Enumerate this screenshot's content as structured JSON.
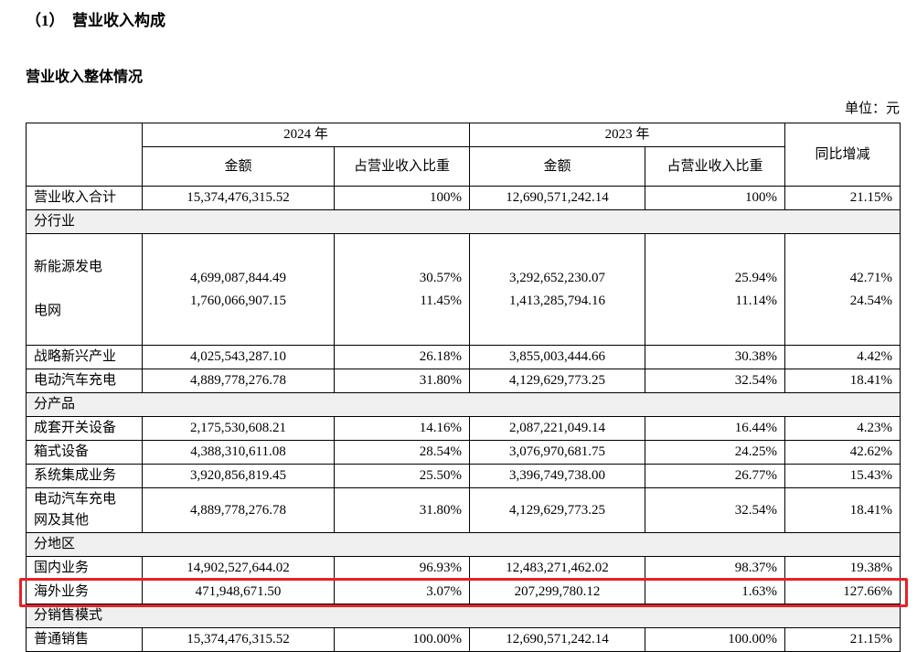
{
  "document": {
    "title": "（1）　营业收入构成",
    "subtitle": "营业收入整体情况",
    "unit_label": "单位：元"
  },
  "table": {
    "headers": {
      "y2024": "2024 年",
      "y2023": "2023 年",
      "yoy": "同比增减",
      "amount": "金额",
      "ratio": "占营业收入比重"
    },
    "rows": {
      "total": {
        "label": "营业收入合计",
        "amount_2024": "15,374,476,315.52",
        "ratio_2024": "100%",
        "amount_2023": "12,690,571,242.14",
        "ratio_2023": "100%",
        "yoy": "21.15%"
      },
      "sec_industry": {
        "label": "分行业"
      },
      "new_energy": {
        "label": "新能源发电",
        "amount_2024": "4,699,087,844.49",
        "ratio_2024": "30.57%",
        "amount_2023": "3,292,652,230.07",
        "ratio_2023": "25.94%",
        "yoy": "42.71%"
      },
      "power_grid": {
        "label": "电网",
        "amount_2024": "1,760,066,907.15",
        "ratio_2024": "11.45%",
        "amount_2023": "1,413,285,794.16",
        "ratio_2023": "11.14%",
        "yoy": "24.54%"
      },
      "strategic": {
        "label": "战略新兴产业",
        "amount_2024": "4,025,543,287.10",
        "ratio_2024": "26.18%",
        "amount_2023": "3,855,003,444.66",
        "ratio_2023": "30.38%",
        "yoy": "4.42%"
      },
      "ev_charging": {
        "label": "电动汽车充电",
        "amount_2024": "4,889,778,276.78",
        "ratio_2024": "31.80%",
        "amount_2023": "4,129,629,773.25",
        "ratio_2023": "32.54%",
        "yoy": "18.41%"
      },
      "sec_product": {
        "label": "分产品"
      },
      "switchgear": {
        "label": "成套开关设备",
        "amount_2024": "2,175,530,608.21",
        "ratio_2024": "14.16%",
        "amount_2023": "2,087,221,049.14",
        "ratio_2023": "16.44%",
        "yoy": "4.23%"
      },
      "box_equipment": {
        "label": "箱式设备",
        "amount_2024": "4,388,310,611.08",
        "ratio_2024": "28.54%",
        "amount_2023": "3,076,970,681.75",
        "ratio_2023": "24.25%",
        "yoy": "42.62%"
      },
      "integration": {
        "label": "系统集成业务",
        "amount_2024": "3,920,856,819.45",
        "ratio_2024": "25.50%",
        "amount_2023": "3,396,749,738.00",
        "ratio_2023": "26.77%",
        "yoy": "15.43%"
      },
      "ev_network": {
        "label": "电动汽车充电\n网及其他",
        "amount_2024": "4,889,778,276.78",
        "ratio_2024": "31.80%",
        "amount_2023": "4,129,629,773.25",
        "ratio_2023": "32.54%",
        "yoy": "18.41%"
      },
      "sec_region": {
        "label": "分地区"
      },
      "domestic": {
        "label": "国内业务",
        "amount_2024": "14,902,527,644.02",
        "ratio_2024": "96.93%",
        "amount_2023": "12,483,271,462.02",
        "ratio_2023": "98.37%",
        "yoy": "19.38%"
      },
      "overseas": {
        "label": "海外业务",
        "amount_2024": "471,948,671.50",
        "ratio_2024": "3.07%",
        "amount_2023": "207,299,780.12",
        "ratio_2023": "1.63%",
        "yoy": "127.66%"
      },
      "sec_sales": {
        "label": "分销售模式"
      },
      "ordinary": {
        "label": "普通销售",
        "amount_2024": "15,374,476,315.52",
        "ratio_2024": "100.00%",
        "amount_2023": "12,690,571,242.14",
        "ratio_2023": "100.00%",
        "yoy": "21.15%"
      }
    }
  },
  "annotations": {
    "overseas_highlight_color": "#e62129"
  }
}
